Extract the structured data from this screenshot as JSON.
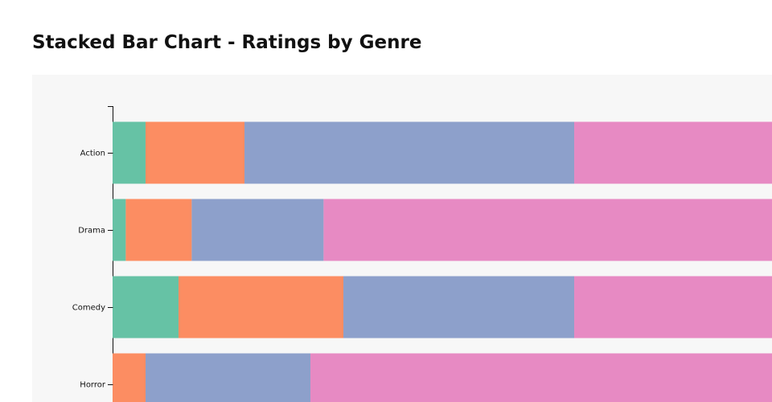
{
  "chart_data": {
    "type": "stacked-bar-horizontal",
    "title": "Stacked Bar Chart - Ratings by Genre",
    "categories": [
      "Action",
      "Drama",
      "Comedy",
      "Horror"
    ],
    "series": [
      {
        "color": "#66c2a5",
        "values": [
          5,
          2,
          10,
          0
        ]
      },
      {
        "color": "#fc8d62",
        "values": [
          15,
          10,
          25,
          5
        ]
      },
      {
        "color": "#8da0cb",
        "values": [
          50,
          20,
          35,
          25
        ]
      },
      {
        "color": "#e78ac3",
        "values": [
          30,
          68,
          30,
          70
        ]
      }
    ],
    "xlim": [
      0,
      100
    ]
  }
}
